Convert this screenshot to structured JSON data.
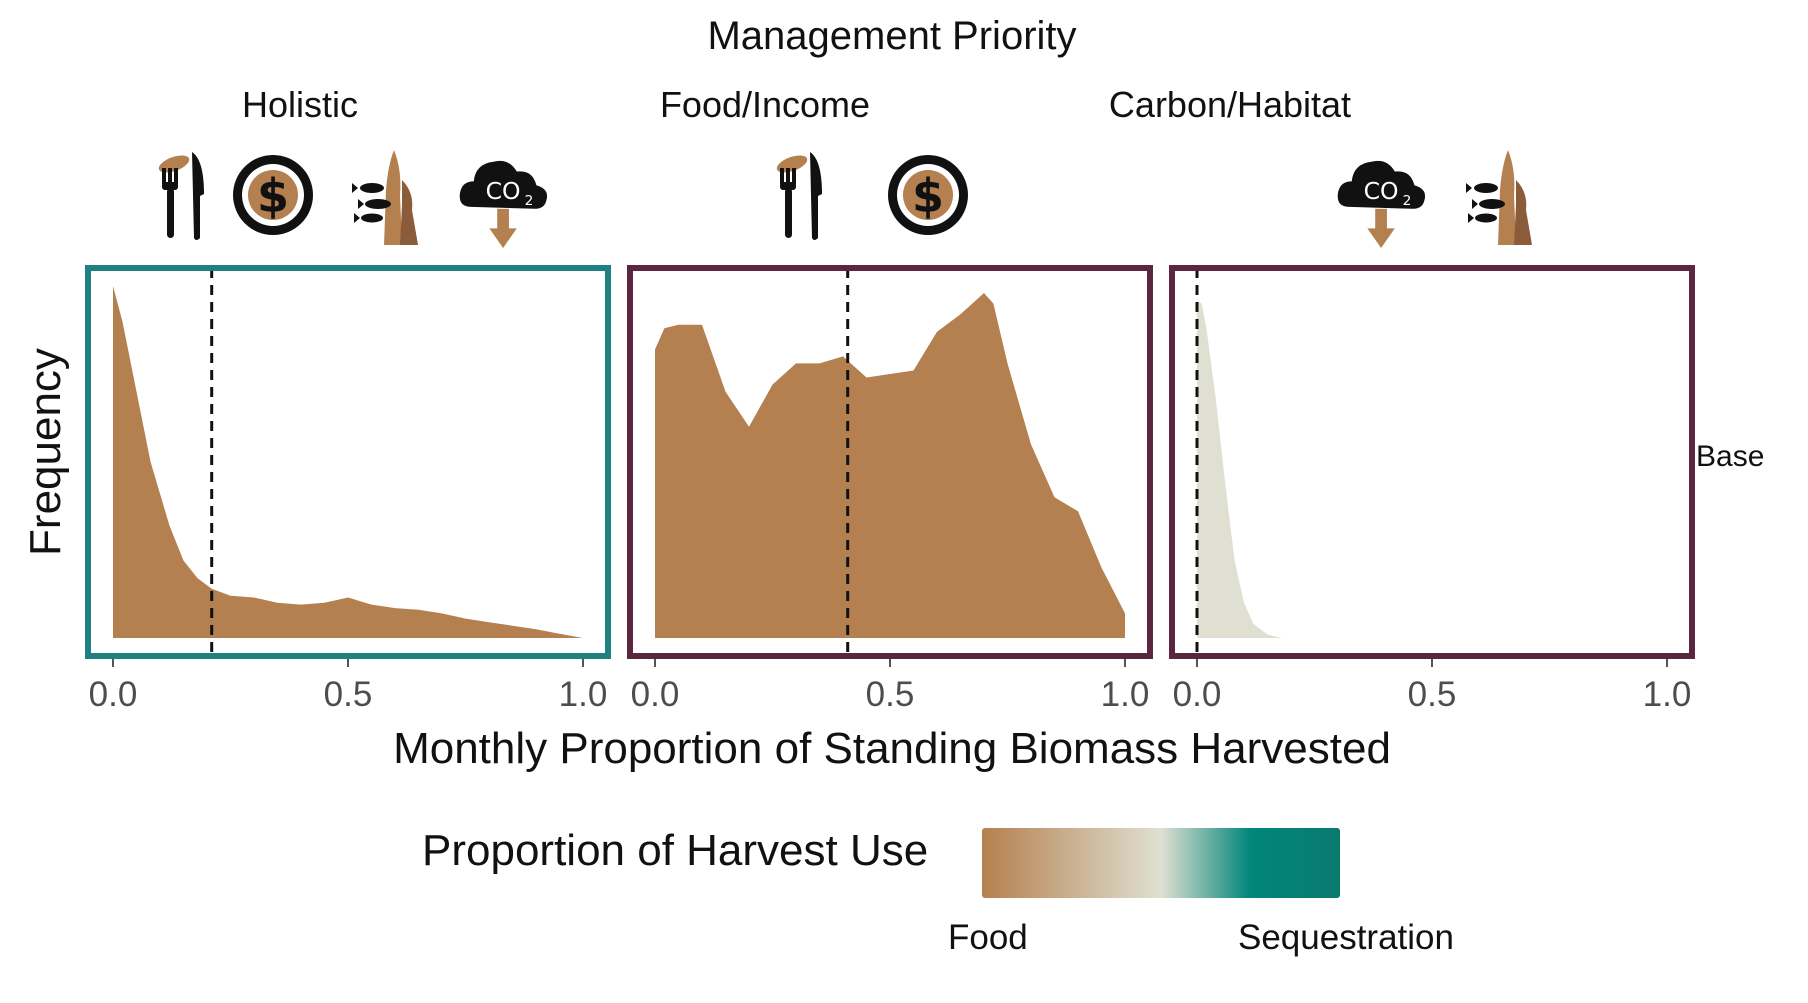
{
  "figure": {
    "title": "Management Priority",
    "xlabel": "Monthly Proportion of Standing Biomass Harvested",
    "ylabel": "Frequency",
    "row_strip": "Base"
  },
  "colors": {
    "food": "#b5804f",
    "mid": "#dfe0d2",
    "sequestration": "#00867a",
    "holistic_frame": "#1e8080",
    "other_frame": "#5a2640",
    "icon": "#111111"
  },
  "legend": {
    "title": "Proportion of Harvest Use",
    "low_label": "Food",
    "high_label": "Sequestration"
  },
  "chart_data": [
    {
      "type": "area",
      "panel": "Holistic",
      "icons": [
        "food-icon",
        "income-icon",
        "habitat-icon",
        "carbon-icon"
      ],
      "xlim": [
        0,
        1
      ],
      "xticks": [
        "0.0",
        "0.5",
        "1.0"
      ],
      "mean_line_x": 0.21,
      "fill": "food",
      "x": [
        0.0,
        0.02,
        0.05,
        0.08,
        0.12,
        0.15,
        0.18,
        0.21,
        0.25,
        0.3,
        0.35,
        0.4,
        0.45,
        0.5,
        0.55,
        0.6,
        0.65,
        0.7,
        0.75,
        0.8,
        0.85,
        0.9,
        0.95,
        1.0
      ],
      "y": [
        1.0,
        0.9,
        0.7,
        0.5,
        0.32,
        0.22,
        0.17,
        0.14,
        0.12,
        0.115,
        0.1,
        0.095,
        0.1,
        0.115,
        0.095,
        0.085,
        0.08,
        0.07,
        0.055,
        0.045,
        0.035,
        0.025,
        0.012,
        0.0
      ]
    },
    {
      "type": "area",
      "panel": "Food/Income",
      "icons": [
        "food-icon",
        "income-icon"
      ],
      "xlim": [
        0,
        1
      ],
      "xticks": [
        "0.0",
        "0.5",
        "1.0"
      ],
      "mean_line_x": 0.41,
      "fill": "food",
      "x": [
        0.0,
        0.02,
        0.05,
        0.1,
        0.15,
        0.2,
        0.25,
        0.3,
        0.35,
        0.4,
        0.45,
        0.5,
        0.55,
        0.6,
        0.65,
        0.7,
        0.72,
        0.75,
        0.8,
        0.85,
        0.9,
        0.95,
        1.0
      ],
      "y": [
        0.82,
        0.88,
        0.89,
        0.89,
        0.7,
        0.6,
        0.72,
        0.78,
        0.78,
        0.8,
        0.74,
        0.75,
        0.76,
        0.87,
        0.92,
        0.98,
        0.95,
        0.78,
        0.55,
        0.4,
        0.36,
        0.2,
        0.07
      ]
    },
    {
      "type": "area",
      "panel": "Carbon/Habitat",
      "icons": [
        "carbon-icon",
        "habitat-icon"
      ],
      "xlim": [
        0,
        1
      ],
      "xticks": [
        "0.0",
        "0.5",
        "1.0"
      ],
      "mean_line_x": 0.0,
      "fill": "mid",
      "x": [
        0.0,
        0.01,
        0.02,
        0.04,
        0.06,
        0.08,
        0.1,
        0.12,
        0.15,
        0.18
      ],
      "y": [
        0.96,
        0.95,
        0.88,
        0.68,
        0.44,
        0.22,
        0.1,
        0.04,
        0.01,
        0.0
      ]
    }
  ]
}
